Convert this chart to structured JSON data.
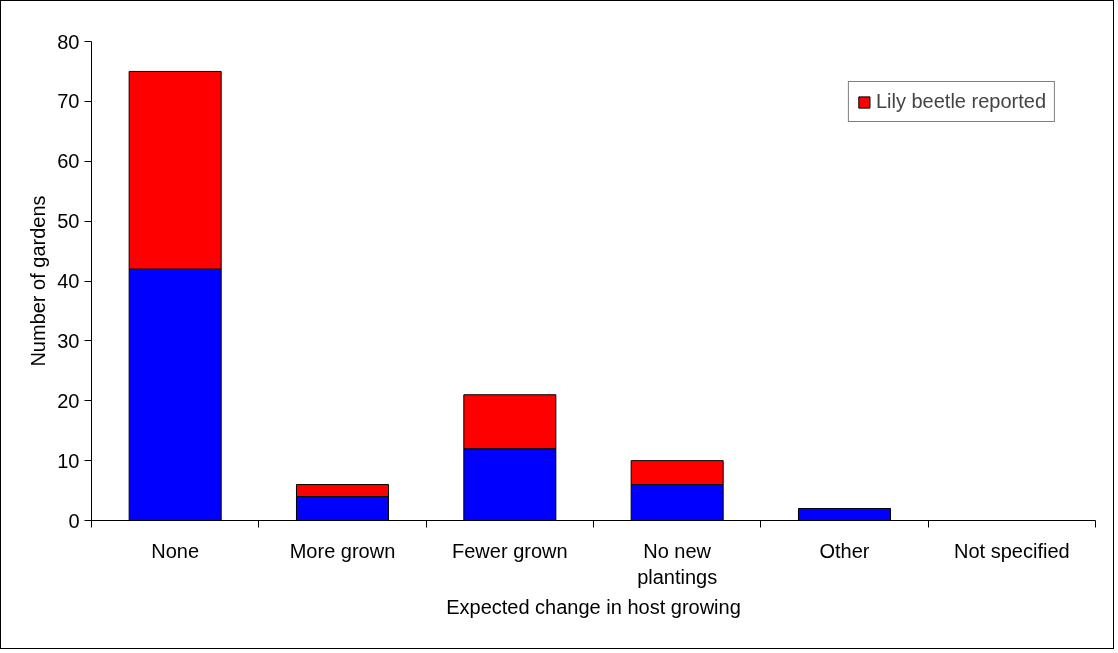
{
  "chart_data": {
    "type": "bar",
    "stacked": true,
    "xlabel": "Expected change in host growing",
    "ylabel": "Number of gardens",
    "categories": [
      "None",
      "More grown",
      "Fewer grown",
      "No new plantings",
      "Other",
      "Not specified"
    ],
    "series": [
      {
        "color": "#0000ff",
        "values": [
          42,
          4,
          12,
          6,
          2,
          0
        ]
      },
      {
        "name": "Lily beetle reported",
        "color": "#ff0000",
        "values": [
          33,
          2,
          9,
          4,
          0,
          0
        ]
      }
    ],
    "ylim": [
      0,
      80
    ],
    "yticks": [
      0,
      10,
      20,
      30,
      40,
      50,
      60,
      70,
      80
    ],
    "grid": false,
    "legend": "top right"
  }
}
